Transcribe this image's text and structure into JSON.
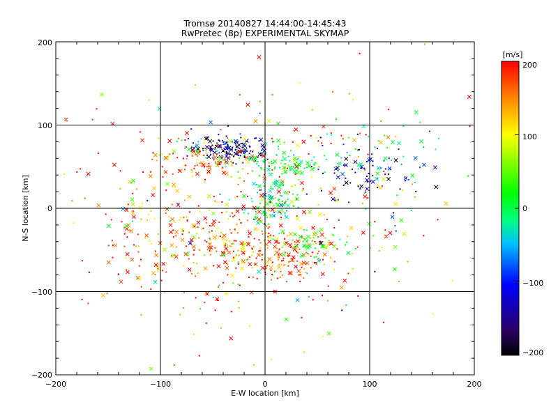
{
  "chart_data": {
    "type": "scatter",
    "title": "Tromsø 20140827 14:44:00-14:45:43",
    "subtitle": "RwPretec (8p) EXPERIMENTAL SKYMAP",
    "xlabel": "E-W location [km]",
    "ylabel": "N-S location [km]",
    "xlim": [
      -200,
      200
    ],
    "ylim": [
      -200,
      200
    ],
    "x_ticks": [
      "−200",
      "−100",
      "0",
      "100",
      "200"
    ],
    "y_ticks": [
      "−200",
      "−100",
      "0",
      "100",
      "200"
    ],
    "grid": true,
    "grid_lines": [
      -100,
      0,
      100
    ],
    "markers": [
      "x",
      "dot"
    ],
    "colorbar": {
      "unit": "[m/s]",
      "range": [
        -200,
        200
      ],
      "ticks": [
        "200",
        "100",
        "0",
        "−100",
        "−200"
      ],
      "colormap": "rainbow",
      "stops": [
        "#000000",
        "#2a0060",
        "#0000ff",
        "#00c0ff",
        "#00ff80",
        "#00ff00",
        "#ffff00",
        "#ff8000",
        "#ff0000"
      ]
    },
    "clusters": [
      {
        "cx": -35,
        "cy": 72,
        "sx": 18,
        "sy": 8,
        "n": 140,
        "vmean": -150,
        "vsd": 55
      },
      {
        "cx": 20,
        "cy": 52,
        "sx": 25,
        "sy": 6,
        "n": 90,
        "vmean": 10,
        "vsd": 25
      },
      {
        "cx": -55,
        "cy": 58,
        "sx": 22,
        "sy": 12,
        "n": 90,
        "vmean": 150,
        "vsd": 60
      },
      {
        "cx": 5,
        "cy": 8,
        "sx": 12,
        "sy": 18,
        "n": 110,
        "vmean": -5,
        "vsd": 35
      },
      {
        "cx": -40,
        "cy": -40,
        "sx": 35,
        "sy": 25,
        "n": 180,
        "vmean": 160,
        "vsd": 60
      },
      {
        "cx": 20,
        "cy": -58,
        "sx": 25,
        "sy": 15,
        "n": 140,
        "vmean": 180,
        "vsd": 40
      },
      {
        "cx": 55,
        "cy": -45,
        "sx": 15,
        "sy": 10,
        "n": 50,
        "vmean": 30,
        "vsd": 25
      },
      {
        "cx": 95,
        "cy": 40,
        "sx": 30,
        "sy": 18,
        "n": 70,
        "vmean": -140,
        "vsd": 60
      },
      {
        "cx": 120,
        "cy": 60,
        "sx": 30,
        "sy": 20,
        "n": 40,
        "vmean": -40,
        "vsd": 60
      },
      {
        "cx": -110,
        "cy": -25,
        "sx": 45,
        "sy": 55,
        "n": 120,
        "vmean": 180,
        "vsd": 50
      },
      {
        "cx": 0,
        "cy": 0,
        "sx": 90,
        "sy": 75,
        "n": 360,
        "vmean": 120,
        "vsd": 110
      }
    ]
  }
}
